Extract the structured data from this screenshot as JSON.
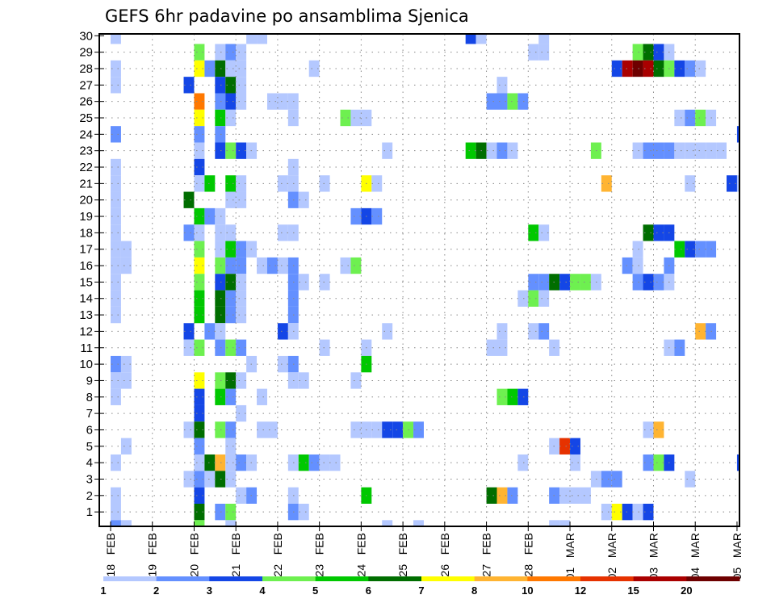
{
  "chart_data": {
    "type": "heatmap",
    "title": "GEFS 6hr padavine po ansamblima Sjenica",
    "xlabel": "",
    "ylabel": "",
    "y_ticks": [
      "1",
      "2",
      "3",
      "4",
      "5",
      "6",
      "7",
      "8",
      "9",
      "10",
      "11",
      "12",
      "13",
      "14",
      "15",
      "16",
      "17",
      "18",
      "19",
      "20",
      "21",
      "22",
      "23",
      "24",
      "25",
      "26",
      "27",
      "28",
      "29",
      "30"
    ],
    "ylim": [
      0,
      30
    ],
    "x_ticks": [
      "18 FEB",
      "19 FEB",
      "20 FEB",
      "21 FEB",
      "22 FEB",
      "23 FEB",
      "24 FEB",
      "25 FEB",
      "26 FEB",
      "27 FEB",
      "28 FEB",
      "01 MAR",
      "02 MAR",
      "03 MAR",
      "04 MAR",
      "05 MAR"
    ],
    "x_step": "6hr",
    "grid": true,
    "colorbar": {
      "labels": [
        "1",
        "2",
        "3",
        "4",
        "5",
        "6",
        "7",
        "8",
        "10",
        "12",
        "15",
        "20"
      ],
      "colors": [
        "#b4c8ff",
        "#6490ff",
        "#1446e6",
        "#6ef050",
        "#00c800",
        "#006e00",
        "#ffff00",
        "#ffb432",
        "#ff7800",
        "#e63200",
        "#aa0000",
        "#6e0000"
      ]
    },
    "cells_note": "each cell: [member, step (6h steps from 18 FEB 00z), class index into colorbar]",
    "cells": [
      [
        30,
        0,
        0
      ],
      [
        30,
        13,
        0
      ],
      [
        30,
        14,
        0
      ],
      [
        30,
        34,
        2
      ],
      [
        30,
        35,
        0
      ],
      [
        30,
        41,
        0
      ],
      [
        29,
        8,
        3
      ],
      [
        29,
        10,
        0
      ],
      [
        29,
        11,
        1
      ],
      [
        29,
        12,
        0
      ],
      [
        29,
        40,
        0
      ],
      [
        29,
        41,
        0
      ],
      [
        29,
        50,
        3
      ],
      [
        29,
        51,
        5
      ],
      [
        29,
        52,
        2
      ],
      [
        29,
        53,
        0
      ],
      [
        28,
        0,
        0
      ],
      [
        28,
        8,
        6
      ],
      [
        28,
        9,
        1
      ],
      [
        28,
        10,
        5
      ],
      [
        28,
        11,
        0
      ],
      [
        28,
        12,
        0
      ],
      [
        28,
        19,
        0
      ],
      [
        28,
        48,
        2
      ],
      [
        28,
        49,
        10
      ],
      [
        28,
        50,
        11
      ],
      [
        28,
        51,
        10
      ],
      [
        28,
        52,
        5
      ],
      [
        28,
        53,
        3
      ],
      [
        28,
        54,
        2
      ],
      [
        28,
        55,
        1
      ],
      [
        28,
        56,
        0
      ],
      [
        27,
        0,
        0
      ],
      [
        27,
        7,
        2
      ],
      [
        27,
        10,
        2
      ],
      [
        27,
        11,
        5
      ],
      [
        27,
        12,
        0
      ],
      [
        27,
        37,
        0
      ],
      [
        26,
        8,
        8
      ],
      [
        26,
        10,
        1
      ],
      [
        26,
        11,
        2
      ],
      [
        26,
        12,
        0
      ],
      [
        26,
        15,
        0
      ],
      [
        26,
        16,
        0
      ],
      [
        26,
        17,
        0
      ],
      [
        26,
        36,
        1
      ],
      [
        26,
        37,
        1
      ],
      [
        26,
        38,
        3
      ],
      [
        26,
        39,
        1
      ],
      [
        25,
        8,
        6
      ],
      [
        25,
        10,
        4
      ],
      [
        25,
        11,
        0
      ],
      [
        25,
        17,
        0
      ],
      [
        25,
        22,
        3
      ],
      [
        25,
        23,
        0
      ],
      [
        25,
        24,
        0
      ],
      [
        25,
        54,
        0
      ],
      [
        25,
        55,
        1
      ],
      [
        25,
        56,
        3
      ],
      [
        25,
        57,
        0
      ],
      [
        24,
        0,
        1
      ],
      [
        24,
        8,
        1
      ],
      [
        24,
        10,
        1
      ],
      [
        24,
        60,
        2
      ],
      [
        23,
        8,
        0
      ],
      [
        23,
        10,
        2
      ],
      [
        23,
        11,
        3
      ],
      [
        23,
        12,
        2
      ],
      [
        23,
        13,
        0
      ],
      [
        23,
        26,
        0
      ],
      [
        23,
        34,
        4
      ],
      [
        23,
        35,
        5
      ],
      [
        23,
        36,
        0
      ],
      [
        23,
        37,
        1
      ],
      [
        23,
        38,
        0
      ],
      [
        23,
        46,
        3
      ],
      [
        23,
        50,
        0
      ],
      [
        23,
        51,
        1
      ],
      [
        23,
        52,
        1
      ],
      [
        23,
        53,
        1
      ],
      [
        23,
        54,
        0
      ],
      [
        23,
        55,
        0
      ],
      [
        23,
        56,
        0
      ],
      [
        23,
        57,
        0
      ],
      [
        23,
        58,
        0
      ],
      [
        22,
        0,
        0
      ],
      [
        22,
        8,
        2
      ],
      [
        22,
        17,
        0
      ],
      [
        21,
        0,
        0
      ],
      [
        21,
        8,
        0
      ],
      [
        21,
        9,
        4
      ],
      [
        21,
        11,
        4
      ],
      [
        21,
        12,
        0
      ],
      [
        21,
        16,
        0
      ],
      [
        21,
        17,
        0
      ],
      [
        21,
        20,
        0
      ],
      [
        21,
        24,
        6
      ],
      [
        21,
        25,
        0
      ],
      [
        21,
        47,
        7
      ],
      [
        21,
        55,
        0
      ],
      [
        21,
        59,
        2
      ],
      [
        21,
        60,
        0
      ],
      [
        20,
        0,
        0
      ],
      [
        20,
        7,
        5
      ],
      [
        20,
        11,
        0
      ],
      [
        20,
        12,
        0
      ],
      [
        20,
        17,
        1
      ],
      [
        20,
        18,
        0
      ],
      [
        19,
        0,
        0
      ],
      [
        19,
        8,
        4
      ],
      [
        19,
        9,
        1
      ],
      [
        19,
        10,
        0
      ],
      [
        19,
        23,
        1
      ],
      [
        19,
        24,
        2
      ],
      [
        19,
        25,
        1
      ],
      [
        18,
        0,
        0
      ],
      [
        18,
        7,
        1
      ],
      [
        18,
        8,
        0
      ],
      [
        18,
        10,
        0
      ],
      [
        18,
        11,
        0
      ],
      [
        18,
        16,
        0
      ],
      [
        18,
        17,
        0
      ],
      [
        18,
        40,
        4
      ],
      [
        18,
        41,
        0
      ],
      [
        18,
        51,
        5
      ],
      [
        18,
        52,
        2
      ],
      [
        18,
        53,
        2
      ],
      [
        17,
        0,
        0
      ],
      [
        17,
        1,
        0
      ],
      [
        17,
        8,
        3
      ],
      [
        17,
        10,
        0
      ],
      [
        17,
        11,
        4
      ],
      [
        17,
        12,
        1
      ],
      [
        17,
        13,
        0
      ],
      [
        17,
        50,
        0
      ],
      [
        17,
        54,
        4
      ],
      [
        17,
        55,
        2
      ],
      [
        17,
        56,
        1
      ],
      [
        17,
        57,
        1
      ],
      [
        16,
        0,
        0
      ],
      [
        16,
        1,
        0
      ],
      [
        16,
        8,
        6
      ],
      [
        16,
        10,
        3
      ],
      [
        16,
        11,
        1
      ],
      [
        16,
        12,
        1
      ],
      [
        16,
        14,
        0
      ],
      [
        16,
        15,
        1
      ],
      [
        16,
        16,
        0
      ],
      [
        16,
        17,
        1
      ],
      [
        16,
        22,
        0
      ],
      [
        16,
        23,
        3
      ],
      [
        16,
        49,
        1
      ],
      [
        16,
        50,
        0
      ],
      [
        16,
        53,
        1
      ],
      [
        15,
        0,
        0
      ],
      [
        15,
        8,
        3
      ],
      [
        15,
        10,
        2
      ],
      [
        15,
        11,
        5
      ],
      [
        15,
        12,
        0
      ],
      [
        15,
        17,
        1
      ],
      [
        15,
        18,
        0
      ],
      [
        15,
        20,
        0
      ],
      [
        15,
        40,
        1
      ],
      [
        15,
        41,
        1
      ],
      [
        15,
        42,
        5
      ],
      [
        15,
        43,
        2
      ],
      [
        15,
        44,
        3
      ],
      [
        15,
        45,
        3
      ],
      [
        15,
        46,
        0
      ],
      [
        15,
        50,
        1
      ],
      [
        15,
        51,
        2
      ],
      [
        15,
        52,
        1
      ],
      [
        15,
        53,
        0
      ],
      [
        14,
        0,
        0
      ],
      [
        14,
        8,
        4
      ],
      [
        14,
        10,
        5
      ],
      [
        14,
        11,
        1
      ],
      [
        14,
        12,
        0
      ],
      [
        14,
        17,
        1
      ],
      [
        14,
        39,
        0
      ],
      [
        14,
        40,
        3
      ],
      [
        14,
        41,
        0
      ],
      [
        13,
        0,
        0
      ],
      [
        13,
        8,
        4
      ],
      [
        13,
        10,
        5
      ],
      [
        13,
        11,
        1
      ],
      [
        13,
        12,
        0
      ],
      [
        13,
        17,
        1
      ],
      [
        12,
        7,
        2
      ],
      [
        12,
        9,
        1
      ],
      [
        12,
        10,
        0
      ],
      [
        12,
        16,
        2
      ],
      [
        12,
        17,
        0
      ],
      [
        12,
        26,
        0
      ],
      [
        12,
        37,
        0
      ],
      [
        12,
        40,
        0
      ],
      [
        12,
        41,
        1
      ],
      [
        12,
        56,
        7
      ],
      [
        12,
        57,
        1
      ],
      [
        11,
        7,
        0
      ],
      [
        11,
        8,
        3
      ],
      [
        11,
        10,
        1
      ],
      [
        11,
        11,
        3
      ],
      [
        11,
        12,
        1
      ],
      [
        11,
        20,
        0
      ],
      [
        11,
        24,
        0
      ],
      [
        11,
        36,
        0
      ],
      [
        11,
        37,
        0
      ],
      [
        11,
        42,
        0
      ],
      [
        11,
        53,
        0
      ],
      [
        11,
        54,
        1
      ],
      [
        10,
        0,
        1
      ],
      [
        10,
        1,
        0
      ],
      [
        10,
        13,
        0
      ],
      [
        10,
        16,
        0
      ],
      [
        10,
        17,
        1
      ],
      [
        10,
        24,
        4
      ],
      [
        9,
        0,
        0
      ],
      [
        9,
        1,
        0
      ],
      [
        9,
        8,
        6
      ],
      [
        9,
        10,
        3
      ],
      [
        9,
        11,
        5
      ],
      [
        9,
        12,
        0
      ],
      [
        9,
        17,
        0
      ],
      [
        9,
        18,
        0
      ],
      [
        9,
        23,
        0
      ],
      [
        8,
        0,
        0
      ],
      [
        8,
        8,
        2
      ],
      [
        8,
        10,
        4
      ],
      [
        8,
        11,
        1
      ],
      [
        8,
        14,
        0
      ],
      [
        8,
        37,
        3
      ],
      [
        8,
        38,
        4
      ],
      [
        8,
        39,
        2
      ],
      [
        7,
        8,
        2
      ],
      [
        7,
        12,
        0
      ],
      [
        6,
        7,
        0
      ],
      [
        6,
        8,
        5
      ],
      [
        6,
        10,
        3
      ],
      [
        6,
        11,
        1
      ],
      [
        6,
        14,
        0
      ],
      [
        6,
        15,
        0
      ],
      [
        6,
        23,
        0
      ],
      [
        6,
        24,
        0
      ],
      [
        6,
        25,
        0
      ],
      [
        6,
        26,
        2
      ],
      [
        6,
        27,
        2
      ],
      [
        6,
        28,
        3
      ],
      [
        6,
        29,
        1
      ],
      [
        6,
        51,
        0
      ],
      [
        6,
        52,
        7
      ],
      [
        5,
        1,
        0
      ],
      [
        5,
        8,
        1
      ],
      [
        5,
        11,
        0
      ],
      [
        5,
        42,
        0
      ],
      [
        5,
        43,
        9
      ],
      [
        5,
        44,
        2
      ],
      [
        4,
        0,
        0
      ],
      [
        4,
        8,
        0
      ],
      [
        4,
        9,
        5
      ],
      [
        4,
        10,
        7
      ],
      [
        4,
        11,
        0
      ],
      [
        4,
        12,
        1
      ],
      [
        4,
        13,
        0
      ],
      [
        4,
        17,
        0
      ],
      [
        4,
        18,
        4
      ],
      [
        4,
        19,
        1
      ],
      [
        4,
        20,
        0
      ],
      [
        4,
        21,
        0
      ],
      [
        4,
        39,
        0
      ],
      [
        4,
        44,
        0
      ],
      [
        4,
        51,
        1
      ],
      [
        4,
        52,
        3
      ],
      [
        4,
        53,
        2
      ],
      [
        4,
        60,
        2
      ],
      [
        3,
        7,
        0
      ],
      [
        3,
        8,
        1
      ],
      [
        3,
        9,
        0
      ],
      [
        3,
        10,
        5
      ],
      [
        3,
        11,
        0
      ],
      [
        3,
        46,
        0
      ],
      [
        3,
        47,
        1
      ],
      [
        3,
        48,
        1
      ],
      [
        3,
        55,
        0
      ],
      [
        2,
        0,
        0
      ],
      [
        2,
        8,
        2
      ],
      [
        2,
        12,
        0
      ],
      [
        2,
        13,
        1
      ],
      [
        2,
        17,
        0
      ],
      [
        2,
        24,
        4
      ],
      [
        2,
        36,
        5
      ],
      [
        2,
        37,
        7
      ],
      [
        2,
        38,
        1
      ],
      [
        2,
        42,
        1
      ],
      [
        2,
        43,
        0
      ],
      [
        2,
        44,
        0
      ],
      [
        2,
        45,
        0
      ],
      [
        1,
        0,
        0
      ],
      [
        1,
        8,
        5
      ],
      [
        1,
        10,
        1
      ],
      [
        1,
        11,
        3
      ],
      [
        1,
        17,
        1
      ],
      [
        1,
        18,
        0
      ],
      [
        1,
        47,
        0
      ],
      [
        1,
        48,
        6
      ],
      [
        1,
        49,
        2
      ],
      [
        1,
        50,
        0
      ],
      [
        1,
        51,
        2
      ],
      [
        0,
        0,
        1
      ],
      [
        0,
        1,
        0
      ],
      [
        0,
        8,
        3
      ],
      [
        0,
        11,
        0
      ],
      [
        0,
        26,
        0
      ],
      [
        0,
        29,
        0
      ],
      [
        0,
        42,
        0
      ],
      [
        0,
        43,
        0
      ]
    ]
  }
}
